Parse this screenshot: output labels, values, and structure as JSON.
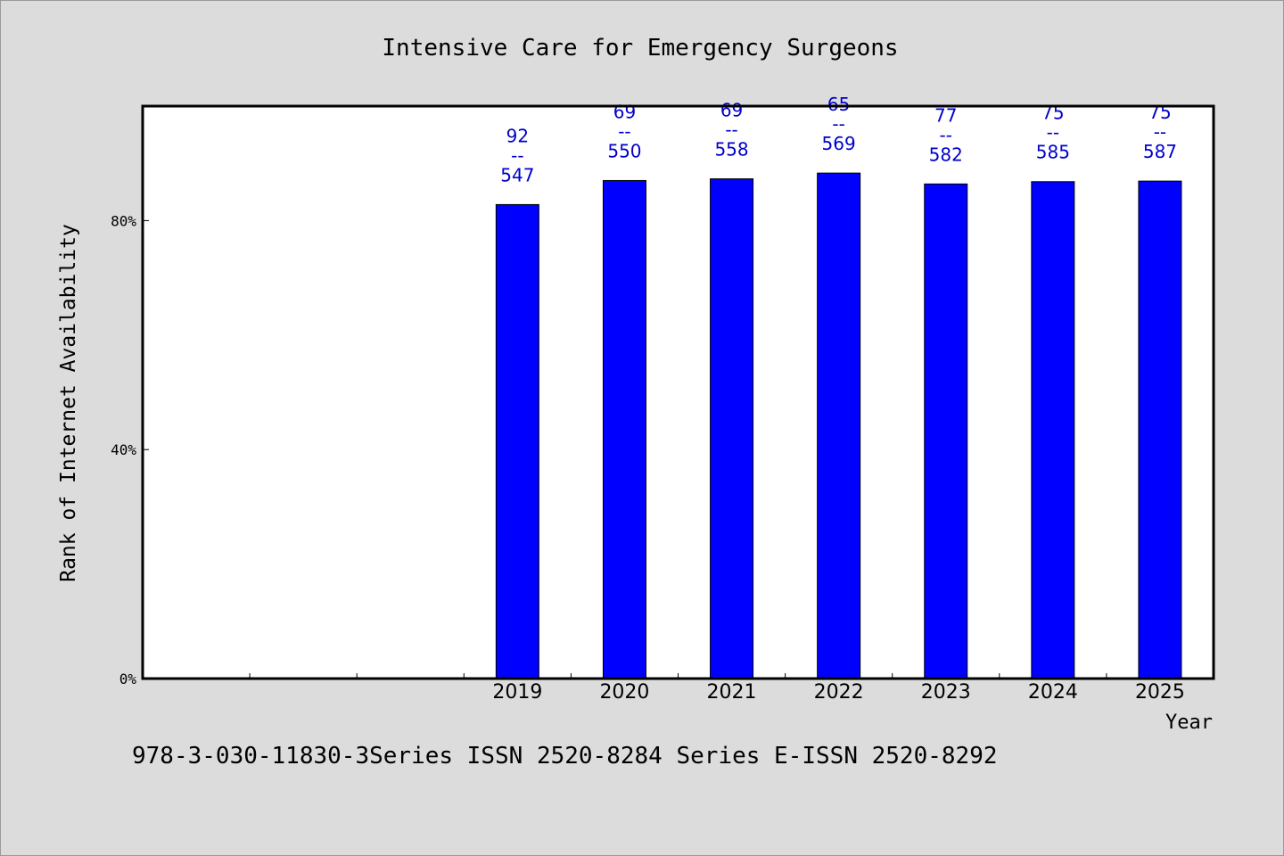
{
  "chart_data": {
    "type": "bar",
    "title": "Intensive Care for Emergency Surgeons",
    "xlabel": "Year",
    "ylabel": "Rank of Internet Availability",
    "categories": [
      "",
      "",
      "",
      "2019",
      "2020",
      "2021",
      "2022",
      "2023",
      "2024",
      "2025"
    ],
    "values": [
      null,
      null,
      null,
      82.8,
      87.0,
      87.3,
      88.3,
      86.4,
      86.8,
      86.9
    ],
    "bar_labels": [
      null,
      null,
      null,
      [
        "92",
        "--",
        "547"
      ],
      [
        "69",
        "--",
        "550"
      ],
      [
        "69",
        "--",
        "558"
      ],
      [
        "65",
        "--",
        "569"
      ],
      [
        "77",
        "--",
        "582"
      ],
      [
        "75",
        "--",
        "585"
      ],
      [
        "75",
        "--",
        "587"
      ]
    ],
    "ylim": [
      0,
      100
    ],
    "yticks": [
      0,
      40,
      80
    ],
    "ytick_labels": [
      "0%",
      "40%",
      "80%"
    ],
    "grid": false,
    "legend": "none",
    "colors": {
      "bar": "#0000ff",
      "bar_label": "#0000cc",
      "background": "#dcdcdc",
      "plot_area": "#ffffff"
    }
  },
  "footer": {
    "text": "978-3-030-11830-3Series ISSN 2520-8284 Series E-ISSN 2520-8292"
  }
}
